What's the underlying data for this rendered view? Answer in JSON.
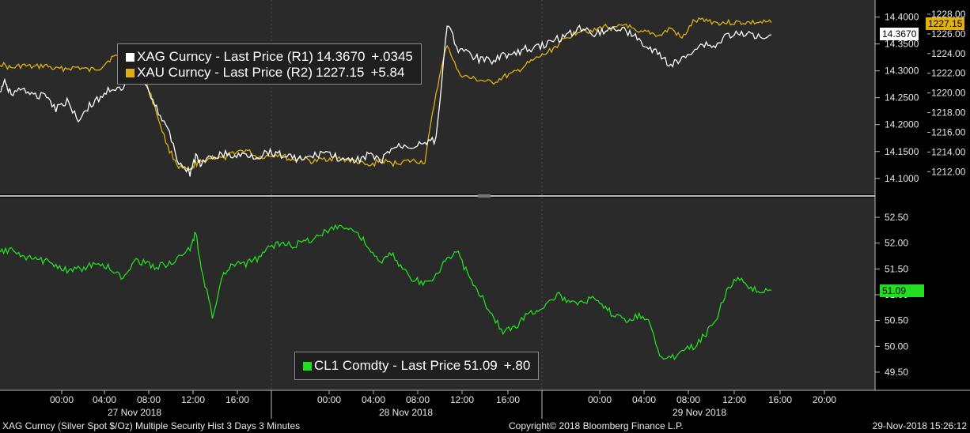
{
  "chart_data": [
    {
      "type": "line",
      "title": "",
      "ylabel_left": "",
      "x_axis": {
        "tick_labels": [
          "00:00",
          "04:00",
          "08:00",
          "12:00",
          "16:00",
          "00:00",
          "04:00",
          "08:00",
          "12:00",
          "16:00",
          "00:00",
          "04:00",
          "08:00",
          "12:00",
          "16:00",
          "20:00"
        ],
        "day_labels": [
          "27 Nov 2018",
          "28 Nov 2018",
          "29 Nov 2018"
        ]
      },
      "y_right_1": {
        "ticks": [
          "14.4000",
          "14.3500",
          "14.3000",
          "14.2500",
          "14.2000",
          "14.1500",
          "14.1000"
        ],
        "ylim": [
          14.085,
          14.42
        ]
      },
      "y_right_2": {
        "ticks": [
          "1228.00",
          "1226.00",
          "1224.00",
          "1222.00",
          "1220.00",
          "1218.00",
          "1216.00",
          "1214.00",
          "1212.00"
        ],
        "ylim": [
          1210.5,
          1228.8
        ]
      },
      "series": [
        {
          "name": "XAG Curncy - Last Price (R1)",
          "color": "#ffffff",
          "axis": "R1",
          "last_label": "14.3670",
          "change": "+.0345",
          "x": [
            0,
            0.5,
            1,
            2,
            3,
            4,
            5,
            6,
            7,
            8,
            9,
            10,
            11,
            12,
            13,
            14,
            15,
            16,
            17,
            17.5,
            18,
            19,
            20,
            21,
            22,
            23,
            24,
            25,
            26,
            27,
            28,
            29,
            30,
            31,
            32,
            33,
            34,
            35,
            36,
            37,
            38,
            39,
            40,
            41,
            42,
            43,
            44,
            45,
            46,
            47,
            48,
            49,
            50,
            51,
            52,
            53,
            54,
            55,
            56,
            57,
            58,
            59,
            60,
            61,
            62,
            63,
            64,
            65,
            66,
            67,
            68,
            69
          ],
          "y": [
            14.26,
            14.28,
            14.255,
            14.27,
            14.25,
            14.26,
            14.23,
            14.245,
            14.21,
            14.235,
            14.25,
            14.27,
            14.26,
            14.34,
            14.28,
            14.23,
            14.19,
            14.13,
            14.11,
            14.14,
            14.125,
            14.14,
            14.145,
            14.14,
            14.145,
            14.14,
            14.15,
            14.145,
            14.14,
            14.135,
            14.14,
            14.15,
            14.14,
            14.13,
            14.135,
            14.145,
            14.13,
            14.155,
            14.16,
            14.16,
            14.17,
            14.17,
            14.39,
            14.34,
            14.33,
            14.32,
            14.32,
            14.33,
            14.33,
            14.34,
            14.345,
            14.35,
            14.36,
            14.37,
            14.38,
            14.37,
            14.375,
            14.38,
            14.375,
            14.36,
            14.34,
            14.33,
            14.31,
            14.32,
            14.34,
            14.35,
            14.345,
            14.367,
            14.367,
            14.367,
            14.367,
            14.367
          ]
        },
        {
          "name": "XAU Curncy - Last Price (R2)",
          "color": "#e0b010",
          "axis": "R2",
          "last_label": "1227.15",
          "change": "+5.84",
          "x": [
            0,
            1,
            2,
            3,
            4,
            5,
            6,
            7,
            8,
            9,
            10,
            11,
            12,
            13,
            14,
            15,
            16,
            17,
            17.5,
            18,
            19,
            20,
            21,
            22,
            23,
            24,
            25,
            26,
            27,
            28,
            29,
            30,
            31,
            32,
            33,
            34,
            35,
            36,
            37,
            38,
            39,
            40,
            41,
            42,
            43,
            44,
            45,
            46,
            47,
            48,
            49,
            50,
            51,
            52,
            53,
            54,
            55,
            56,
            57,
            58,
            59,
            60,
            61,
            62,
            63,
            64,
            65,
            66,
            67,
            68,
            69
          ],
          "y": [
            1223,
            1222.5,
            1222.8,
            1222.6,
            1222.8,
            1222.4,
            1222.5,
            1222.6,
            1222.3,
            1222.6,
            1223.6,
            1223.8,
            1222.5,
            1221.5,
            1218,
            1214.5,
            1212.5,
            1212,
            1212.8,
            1213,
            1213.5,
            1213.3,
            1214,
            1214.2,
            1213.5,
            1213.6,
            1213.8,
            1213.2,
            1213.4,
            1213,
            1213.3,
            1213.4,
            1213.2,
            1213.0,
            1212.5,
            1213.2,
            1212.8,
            1213.0,
            1213.1,
            1213.0,
            1220,
            1225,
            1222,
            1221.5,
            1221.3,
            1221.0,
            1221.6,
            1222.0,
            1222.8,
            1223.5,
            1224.1,
            1225.0,
            1225.8,
            1226.5,
            1226.2,
            1226.8,
            1226.5,
            1227.0,
            1226.0,
            1226.2,
            1225.8,
            1226.6,
            1225.5,
            1227.2,
            1227.5,
            1227.15,
            1227.15,
            1227.15,
            1227.15,
            1227.15,
            1227.15
          ]
        }
      ]
    },
    {
      "type": "line",
      "title": "",
      "y_right": {
        "ticks": [
          "52.50",
          "52.00",
          "51.50",
          "51.00",
          "50.50",
          "50.00",
          "49.50"
        ],
        "ylim": [
          49.3,
          52.7
        ]
      },
      "series": [
        {
          "name": "CL1 Comdty - Last Price",
          "color": "#22dd22",
          "last_label": "51.09",
          "change": "+.80",
          "x": [
            0,
            1,
            2,
            3,
            4,
            5,
            6,
            7,
            8,
            9,
            10,
            11,
            12,
            13,
            14,
            15,
            16,
            17,
            17.5,
            18,
            19,
            20,
            21,
            22,
            23,
            24,
            25,
            26,
            27,
            28,
            29,
            30,
            31,
            32,
            33,
            34,
            35,
            36,
            37,
            38,
            39,
            40,
            41,
            42,
            43,
            44,
            45,
            46,
            47,
            48,
            49,
            50,
            51,
            52,
            53,
            54,
            55,
            56,
            57,
            58,
            59,
            60,
            61,
            62,
            63,
            64,
            65,
            66,
            67,
            68,
            69
          ],
          "y": [
            51.8,
            51.9,
            51.7,
            51.7,
            51.65,
            51.6,
            51.45,
            51.5,
            51.55,
            51.6,
            51.5,
            51.3,
            51.7,
            51.6,
            51.55,
            51.6,
            51.7,
            51.9,
            52.2,
            51.5,
            50.6,
            51.4,
            51.6,
            51.6,
            51.7,
            51.9,
            52.0,
            51.95,
            52.0,
            52.1,
            52.2,
            52.35,
            52.3,
            52.2,
            51.9,
            51.6,
            51.8,
            51.5,
            51.3,
            51.2,
            51.4,
            51.7,
            51.8,
            51.3,
            51.0,
            50.6,
            50.3,
            50.35,
            50.6,
            50.7,
            50.85,
            51.0,
            50.8,
            50.9,
            50.9,
            50.75,
            50.6,
            50.5,
            50.6,
            50.55,
            49.8,
            49.75,
            49.95,
            50.0,
            50.2,
            50.5,
            51.1,
            51.35,
            51.09,
            51.09,
            51.09
          ]
        }
      ]
    }
  ],
  "legend_top": {
    "rows": [
      {
        "label": "XAG Curncy - Last Price (R1)",
        "value": "14.3670",
        "change": "+.0345",
        "color": "#ffffff"
      },
      {
        "label": "XAU Curncy - Last Price (R2)",
        "value": "1227.15",
        "change": "+5.84",
        "color": "#e0b010"
      }
    ]
  },
  "legend_bottom": {
    "label": "CL1 Comdty - Last Price",
    "value": "51.09",
    "change": "+.80",
    "color": "#22dd22"
  },
  "footer": {
    "left": "XAG Curncy (Silver Spot  $/Oz) Multiple Security Hist   3 Days 3 Minutes",
    "center": "Copyright© 2018 Bloomberg Finance L.P.",
    "right": "29-Nov-2018 15:26:12"
  },
  "tags": {
    "xau": "1227.15",
    "xag": "14.3670",
    "cl1": "51.09"
  },
  "colors": {
    "background": "#000000",
    "panel": "#2a2a2a",
    "grid": "#555555"
  }
}
